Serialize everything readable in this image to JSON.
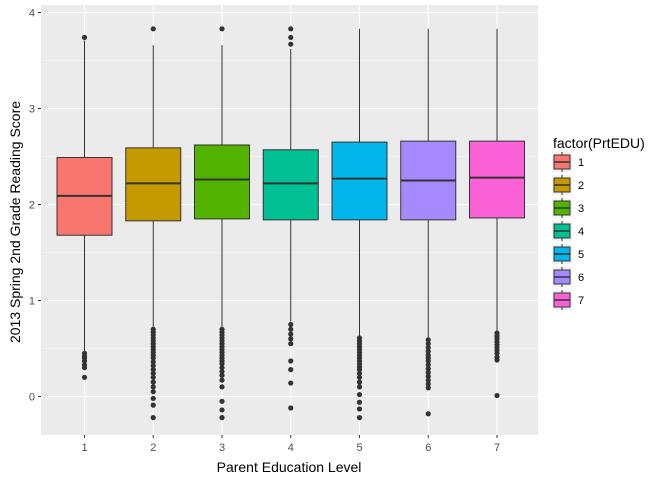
{
  "chart_data": {
    "type": "boxplot",
    "title": "",
    "xlabel": "Parent Education Level",
    "ylabel": "2013 Spring 2nd Grade Reading Score",
    "categories": [
      "1",
      "2",
      "3",
      "4",
      "5",
      "6",
      "7"
    ],
    "ylim": [
      -0.4,
      4.05
    ],
    "y_ticks": [
      0,
      1,
      2,
      3,
      4
    ],
    "y_tick_labels": [
      "0",
      "1",
      "2",
      "3",
      "4"
    ],
    "grid": true,
    "legend": {
      "title": "factor(PrtEDU)",
      "position": "right",
      "labels": [
        "1",
        "2",
        "3",
        "4",
        "5",
        "6",
        "7"
      ]
    },
    "colors": [
      "#F8766D",
      "#C49A00",
      "#53B400",
      "#00C094",
      "#00B6EB",
      "#A58AFF",
      "#FB61D7"
    ],
    "boxes": [
      {
        "category": "1",
        "lower_whisker": 0.47,
        "q1": 1.68,
        "median": 2.09,
        "q3": 2.49,
        "upper_whisker": 3.71,
        "outliers": [
          3.74,
          0.45,
          0.42,
          0.4,
          0.37,
          0.33,
          0.3,
          0.2
        ]
      },
      {
        "category": "2",
        "lower_whisker": 0.72,
        "q1": 1.83,
        "median": 2.22,
        "q3": 2.59,
        "upper_whisker": 3.66,
        "outliers": [
          3.83,
          0.7,
          0.67,
          0.64,
          0.61,
          0.58,
          0.55,
          0.52,
          0.49,
          0.46,
          0.43,
          0.4,
          0.36,
          0.32,
          0.28,
          0.24,
          0.2,
          0.15,
          0.1,
          0.05,
          -0.02,
          -0.09,
          -0.22
        ]
      },
      {
        "category": "3",
        "lower_whisker": 0.72,
        "q1": 1.85,
        "median": 2.26,
        "q3": 2.62,
        "upper_whisker": 3.66,
        "outliers": [
          3.83,
          0.7,
          0.67,
          0.64,
          0.61,
          0.58,
          0.55,
          0.52,
          0.49,
          0.46,
          0.43,
          0.4,
          0.37,
          0.34,
          0.3,
          0.26,
          0.22,
          0.17,
          0.1,
          -0.05,
          -0.14,
          -0.22
        ]
      },
      {
        "category": "4",
        "lower_whisker": 0.78,
        "q1": 1.84,
        "median": 2.22,
        "q3": 2.57,
        "upper_whisker": 3.62,
        "outliers": [
          3.83,
          3.74,
          3.67,
          0.75,
          0.7,
          0.65,
          0.6,
          0.55,
          0.37,
          0.28,
          0.14,
          -0.12
        ]
      },
      {
        "category": "5",
        "lower_whisker": 0.63,
        "q1": 1.84,
        "median": 2.27,
        "q3": 2.65,
        "upper_whisker": 3.83,
        "outliers": [
          0.61,
          0.58,
          0.55,
          0.52,
          0.49,
          0.46,
          0.43,
          0.4,
          0.37,
          0.34,
          0.31,
          0.28,
          0.24,
          0.2,
          0.15,
          0.1,
          0.02,
          -0.06,
          -0.13,
          -0.22
        ]
      },
      {
        "category": "6",
        "lower_whisker": 0.61,
        "q1": 1.84,
        "median": 2.25,
        "q3": 2.66,
        "upper_whisker": 3.83,
        "outliers": [
          0.59,
          0.55,
          0.51,
          0.47,
          0.43,
          0.4,
          0.37,
          0.33,
          0.29,
          0.25,
          0.21,
          0.17,
          0.13,
          0.09,
          -0.18
        ]
      },
      {
        "category": "7",
        "lower_whisker": 0.67,
        "q1": 1.86,
        "median": 2.28,
        "q3": 2.66,
        "upper_whisker": 3.83,
        "outliers": [
          0.66,
          0.63,
          0.6,
          0.57,
          0.54,
          0.51,
          0.48,
          0.45,
          0.41,
          0.38,
          0.01
        ]
      }
    ]
  }
}
